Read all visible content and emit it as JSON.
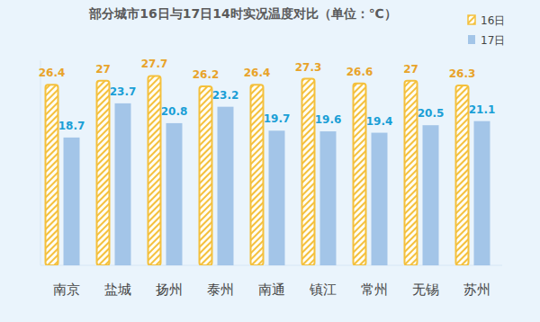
{
  "chart_data": {
    "type": "bar",
    "title": "部分城市16日与17日14时实况温度对比（单位：℃）",
    "categories": [
      "南京",
      "盐城",
      "扬州",
      "泰州",
      "南通",
      "镇江",
      "常州",
      "无锡",
      "苏州"
    ],
    "series": [
      {
        "name": "16日",
        "color": "#f4c03c",
        "values": [
          26.4,
          27,
          27.7,
          26.2,
          26.4,
          27.3,
          26.6,
          27,
          26.3
        ]
      },
      {
        "name": "17日",
        "color": "#a3c5e8",
        "values": [
          18.7,
          23.7,
          20.8,
          23.2,
          19.7,
          19.6,
          19.4,
          20.5,
          21.1
        ]
      }
    ],
    "ylim": [
      0,
      30
    ],
    "data_labels": true,
    "tick_labels": "x",
    "legend": "upper right",
    "grid": false
  }
}
